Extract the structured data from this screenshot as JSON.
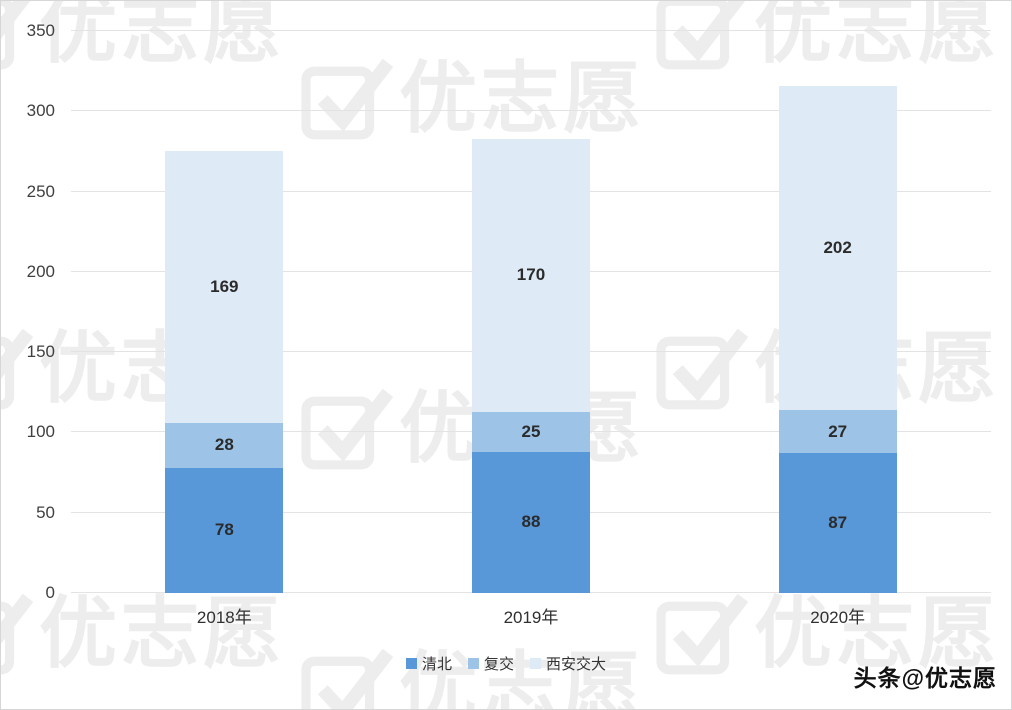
{
  "page": {
    "watermark_text": "优志愿",
    "footer_credit": "头条@优志愿"
  },
  "chart_data": {
    "type": "bar",
    "stacked": true,
    "title": "",
    "xlabel": "",
    "ylabel": "",
    "categories": [
      "2018年",
      "2019年",
      "2020年"
    ],
    "series": [
      {
        "name": "清北",
        "color": "#5898D9",
        "values": [
          78,
          88,
          87
        ]
      },
      {
        "name": "复交",
        "color": "#9DC3E6",
        "values": [
          28,
          25,
          27
        ]
      },
      {
        "name": "西安交大",
        "color": "#DEEAF6",
        "values": [
          169,
          170,
          202
        ]
      }
    ],
    "totals": [
      275,
      283,
      316
    ],
    "ylim": [
      0,
      350
    ],
    "yticks": [
      0,
      50,
      100,
      150,
      200,
      250,
      300,
      350
    ],
    "grid": true,
    "legend_position": "bottom"
  }
}
